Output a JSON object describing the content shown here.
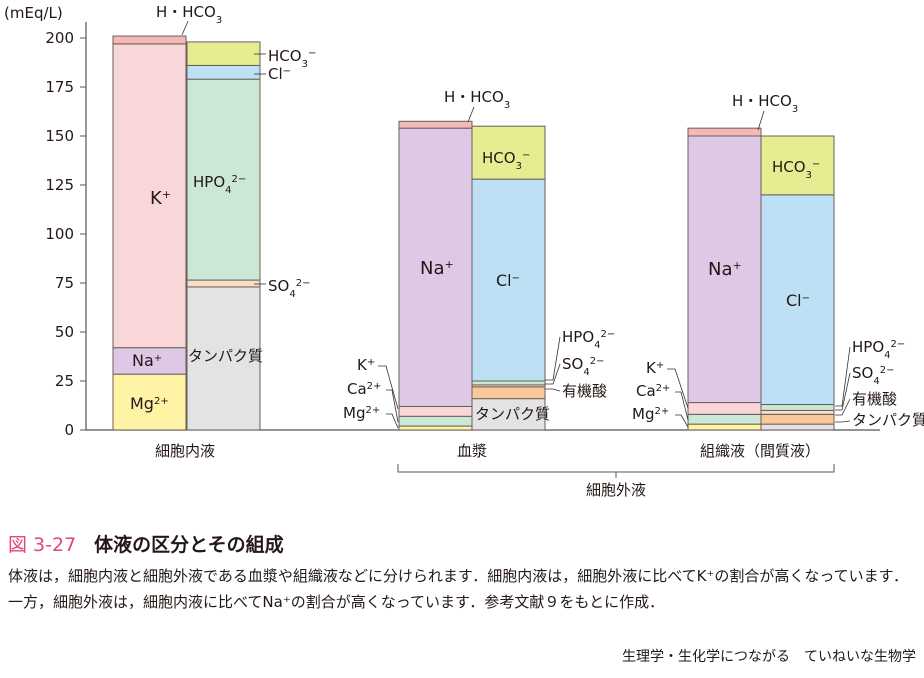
{
  "chart_data": {
    "type": "bar",
    "ylabel": "(mEq/L)",
    "ylim": [
      0,
      200
    ],
    "yticks": [
      0,
      25,
      50,
      75,
      100,
      125,
      150,
      175,
      200
    ],
    "grid": false,
    "groups": [
      {
        "name": "細胞内液",
        "columns": [
          {
            "segments": [
              {
                "name": "Mg2+",
                "value": 28.5,
                "color": "#fff3a6"
              },
              {
                "name": "Na+",
                "value": 13.5,
                "color": "#ddc8e6"
              },
              {
                "name": "K+",
                "value": 155,
                "color": "#f9d6d7"
              },
              {
                "name": "H・HCO3",
                "value": 4,
                "color": "#f4b8b5"
              }
            ]
          },
          {
            "segments": [
              {
                "name": "タンパク質",
                "value": 73,
                "color": "#e3e3e3"
              },
              {
                "name": "SO4 2-",
                "value": 3.5,
                "color": "#f6dfc7"
              },
              {
                "name": "HPO4 2-",
                "value": 102.5,
                "color": "#cbe8d6"
              },
              {
                "name": "Cl-",
                "value": 7,
                "color": "#bde0f4"
              },
              {
                "name": "HCO3-",
                "value": 12,
                "color": "#e6ec91"
              }
            ]
          }
        ]
      },
      {
        "name": "血漿",
        "columns": [
          {
            "segments": [
              {
                "name": "Mg2+",
                "value": 2,
                "color": "#fff3a6"
              },
              {
                "name": "Ca2+",
                "value": 5,
                "color": "#cbe8d6"
              },
              {
                "name": "K+",
                "value": 5,
                "color": "#f9d6d7"
              },
              {
                "name": "Na+",
                "value": 142,
                "color": "#ddc8e6"
              },
              {
                "name": "H・HCO3",
                "value": 3.5,
                "color": "#f4b8b5"
              }
            ]
          },
          {
            "segments": [
              {
                "name": "タンパク質",
                "value": 16,
                "color": "#e3e3e3"
              },
              {
                "name": "有機酸",
                "value": 6,
                "color": "#f8c79a"
              },
              {
                "name": "SO4 2-",
                "value": 1,
                "color": "#f6dfc7"
              },
              {
                "name": "HPO4 2-",
                "value": 2,
                "color": "#cbe8d6"
              },
              {
                "name": "Cl-",
                "value": 103,
                "color": "#bde0f4"
              },
              {
                "name": "HCO3-",
                "value": 27,
                "color": "#e6ec91"
              }
            ]
          }
        ]
      },
      {
        "name": "組織液（間質液）",
        "columns": [
          {
            "segments": [
              {
                "name": "Mg2+",
                "value": 3,
                "color": "#fff3a6"
              },
              {
                "name": "Ca2+",
                "value": 5,
                "color": "#cbe8d6"
              },
              {
                "name": "K+",
                "value": 6,
                "color": "#f9d6d7"
              },
              {
                "name": "Na+",
                "value": 136,
                "color": "#ddc8e6"
              },
              {
                "name": "H・HCO3",
                "value": 4,
                "color": "#f4b8b5"
              }
            ]
          },
          {
            "segments": [
              {
                "name": "タンパク質",
                "value": 3,
                "color": "#e3e3e3"
              },
              {
                "name": "有機酸",
                "value": 5,
                "color": "#f8c79a"
              },
              {
                "name": "SO4 2-",
                "value": 2,
                "color": "#f6dfc7"
              },
              {
                "name": "HPO4 2-",
                "value": 3,
                "color": "#cbe8d6"
              },
              {
                "name": "Cl-",
                "value": 107,
                "color": "#bde0f4"
              },
              {
                "name": "HCO3-",
                "value": 30,
                "color": "#e6ec91"
              }
            ]
          }
        ]
      }
    ],
    "group_bracket_label": "細胞外液"
  },
  "caption": {
    "number": "図 3-27",
    "title": "体液の区分とその組成",
    "body": "体液は，細胞内液と細胞外液である血漿や組織液などに分けられます．細胞内液は，細胞外液に比べてK⁺の割合が高くなっています．一方，細胞外液は，細胞内液に比べてNa⁺の割合が高くなっています．参考文献９をもとに作成．",
    "source": "生理学・生化学につながる　ていねいな生物学"
  }
}
